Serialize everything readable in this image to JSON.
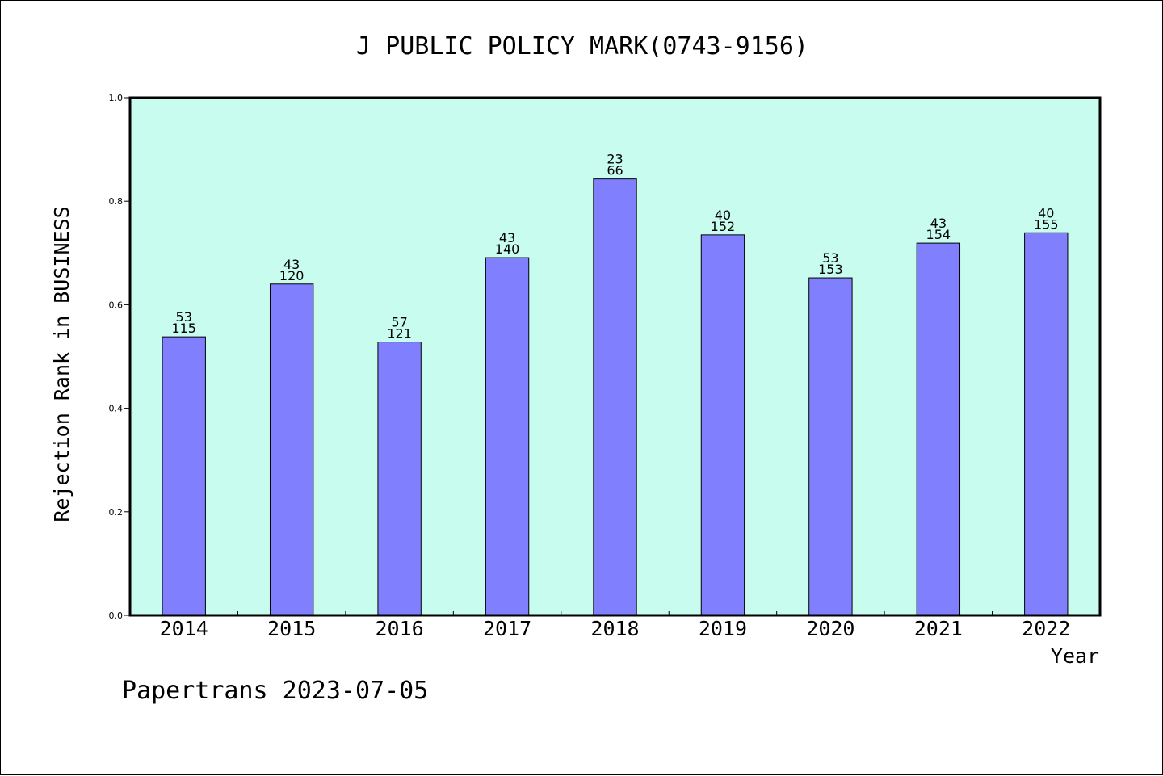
{
  "chart_data": {
    "type": "bar",
    "title": "J PUBLIC POLICY MARK(0743-9156)",
    "xlabel": "Year",
    "ylabel": "Rejection Rank in BUSINESS",
    "ylim": [
      0.0,
      1.0
    ],
    "yticks": [
      "0.0",
      "0.2",
      "0.4",
      "0.6",
      "0.8",
      "1.0"
    ],
    "categories": [
      "2014",
      "2015",
      "2016",
      "2017",
      "2018",
      "2019",
      "2020",
      "2021",
      "2022"
    ],
    "values": [
      0.538,
      0.64,
      0.528,
      0.691,
      0.843,
      0.735,
      0.652,
      0.719,
      0.739
    ],
    "labels_top": [
      "53",
      "43",
      "57",
      "43",
      "23",
      "40",
      "53",
      "43",
      "40"
    ],
    "labels_bottom": [
      "115",
      "120",
      "121",
      "140",
      "66",
      "152",
      "153",
      "154",
      "155"
    ],
    "grid": false,
    "colors": {
      "plot_background": "#c8fcee",
      "bar_fill": "#8080ff",
      "bar_stroke": "#000000"
    }
  },
  "footer": {
    "text": "Papertrans 2023-07-05"
  }
}
